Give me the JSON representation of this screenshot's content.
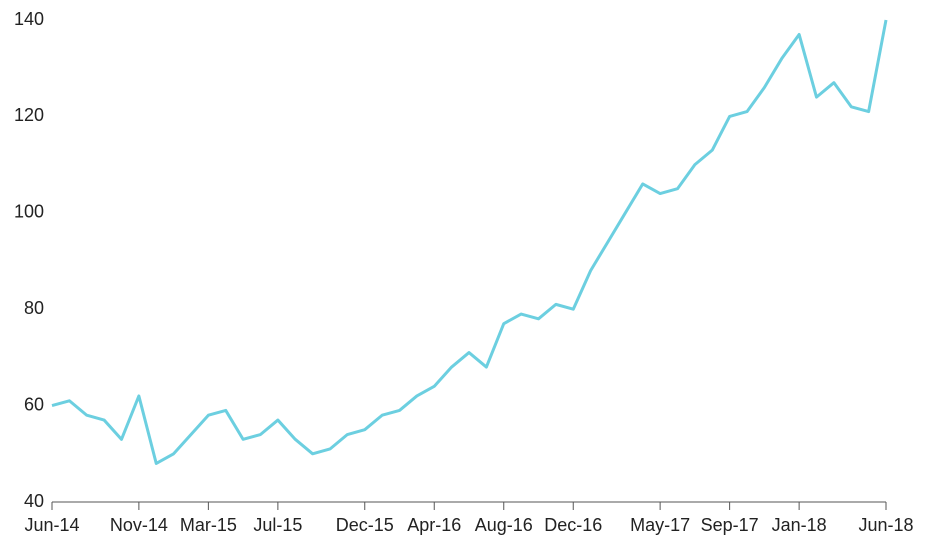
{
  "chart_data": {
    "type": "line",
    "x": [
      "Jun-14",
      "Jul-14",
      "Aug-14",
      "Sep-14",
      "Oct-14",
      "Nov-14",
      "Dec-14",
      "Jan-15",
      "Feb-15",
      "Mar-15",
      "Apr-15",
      "May-15",
      "Jun-15",
      "Jul-15",
      "Aug-15",
      "Sep-15",
      "Oct-15",
      "Nov-15",
      "Dec-15",
      "Jan-16",
      "Feb-16",
      "Mar-16",
      "Apr-16",
      "May-16",
      "Jun-16",
      "Jul-16",
      "Aug-16",
      "Sep-16",
      "Oct-16",
      "Nov-16",
      "Dec-16",
      "Jan-17",
      "Feb-17",
      "Mar-17",
      "Apr-17",
      "May-17",
      "Jun-17",
      "Jul-17",
      "Aug-17",
      "Sep-17",
      "Oct-17",
      "Nov-17",
      "Dec-17",
      "Jan-18",
      "Feb-18",
      "Mar-18",
      "Apr-18",
      "May-18",
      "Jun-18"
    ],
    "values": [
      60,
      61,
      58,
      57,
      53,
      62,
      48,
      50,
      54,
      58,
      59,
      53,
      54,
      57,
      53,
      50,
      51,
      54,
      55,
      58,
      59,
      62,
      64,
      68,
      71,
      68,
      77,
      79,
      78,
      81,
      80,
      88,
      94,
      100,
      106,
      104,
      105,
      110,
      113,
      120,
      121,
      126,
      132,
      137,
      124,
      127,
      122,
      121,
      140
    ],
    "color": "#6ccfe0",
    "xticks": [
      "Jun-14",
      "Nov-14",
      "Mar-15",
      "Jul-15",
      "Dec-15",
      "Apr-16",
      "Aug-16",
      "Dec-16",
      "May-17",
      "Sep-17",
      "Jan-18",
      "Jun-18"
    ],
    "ylim": [
      40,
      140
    ],
    "yticks": [
      40,
      60,
      80,
      100,
      120,
      140
    ],
    "grid": false
  }
}
